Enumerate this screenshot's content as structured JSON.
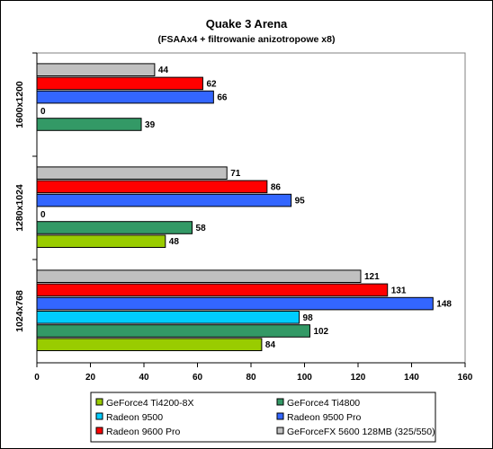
{
  "chart_data": {
    "type": "bar",
    "orientation": "horizontal",
    "title": "Quake 3 Arena",
    "subtitle": "(FSAAx4 + filtrowanie anizotropowe x8)",
    "categories": [
      "1600x1200",
      "1280x1024",
      "1024x768"
    ],
    "xlim": [
      0,
      160
    ],
    "xticks": [
      0,
      20,
      40,
      60,
      80,
      100,
      120,
      140,
      160
    ],
    "grid": false,
    "legend_position": "bottom",
    "series": [
      {
        "name": "GeForce4 Ti4200-8X",
        "color": "#99cc00",
        "values": [
          null,
          48,
          84
        ],
        "labels": [
          "",
          "48",
          "84"
        ]
      },
      {
        "name": "GeForce4 Ti4800",
        "color": "#339966",
        "values": [
          39,
          58,
          102
        ],
        "labels": [
          "39",
          "58",
          "102"
        ]
      },
      {
        "name": "Radeon 9500",
        "color": "#00ccff",
        "values": [
          0,
          0,
          98
        ],
        "labels": [
          "0",
          "0",
          "98"
        ]
      },
      {
        "name": "Radeon 9500 Pro",
        "color": "#3366ff",
        "values": [
          66,
          95,
          148
        ],
        "labels": [
          "66",
          "95",
          "148"
        ]
      },
      {
        "name": "Radeon 9600 Pro",
        "color": "#ff0000",
        "values": [
          62,
          86,
          131
        ],
        "labels": [
          "62",
          "86",
          "131"
        ]
      },
      {
        "name": "GeForceFX 5600 128MB (325/550)",
        "color": "#c0c0c0",
        "values": [
          44,
          71,
          121
        ],
        "labels": [
          "44",
          "71",
          "121"
        ]
      }
    ]
  }
}
